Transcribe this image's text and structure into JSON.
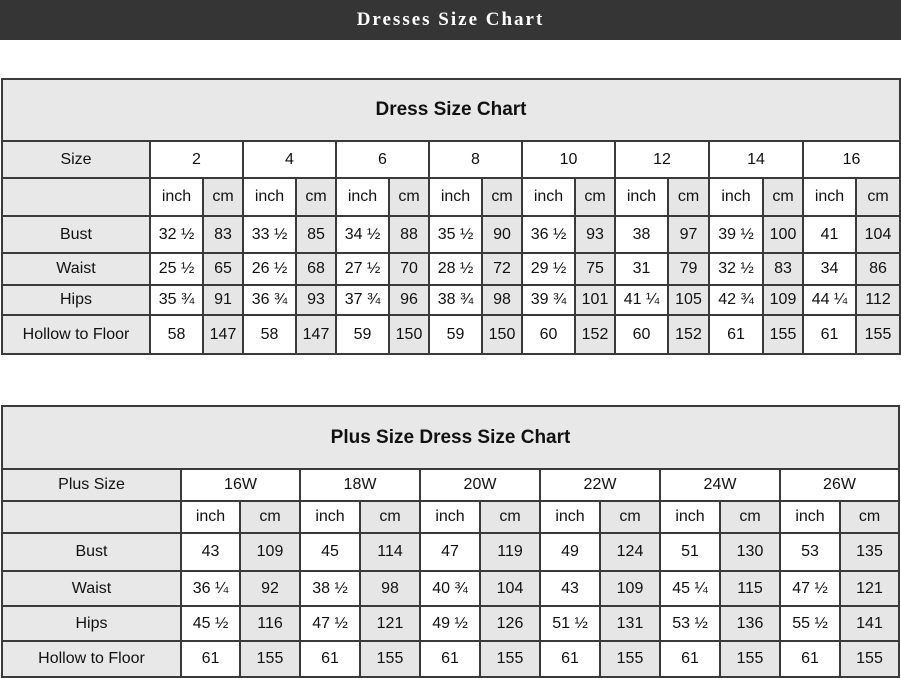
{
  "banner": {
    "title": "Dresses Size Chart"
  },
  "tables": [
    {
      "title": "Dress Size Chart",
      "size_label": "Size",
      "sizes": [
        "2",
        "4",
        "6",
        "8",
        "10",
        "12",
        "14",
        "16"
      ],
      "units": [
        "inch",
        "cm"
      ],
      "rows": [
        {
          "label": "Bust",
          "values": [
            "32 ½",
            "83",
            "33 ½",
            "85",
            "34 ½",
            "88",
            "35 ½",
            "90",
            "36 ½",
            "93",
            "38",
            "97",
            "39 ½",
            "100",
            "41",
            "104"
          ]
        },
        {
          "label": "Waist",
          "values": [
            "25 ½",
            "65",
            "26 ½",
            "68",
            "27 ½",
            "70",
            "28 ½",
            "72",
            "29 ½",
            "75",
            "31",
            "79",
            "32 ½",
            "83",
            "34",
            "86"
          ]
        },
        {
          "label": "Hips",
          "values": [
            "35 ¾",
            "91",
            "36 ¾",
            "93",
            "37 ¾",
            "96",
            "38 ¾",
            "98",
            "39 ¾",
            "101",
            "41 ¼",
            "105",
            "42 ¾",
            "109",
            "44 ¼",
            "112"
          ]
        },
        {
          "label": "Hollow to Floor",
          "values": [
            "58",
            "147",
            "58",
            "147",
            "59",
            "150",
            "59",
            "150",
            "60",
            "152",
            "60",
            "152",
            "61",
            "155",
            "61",
            "155"
          ]
        }
      ]
    },
    {
      "title": "Plus Size Dress Size Chart",
      "size_label": "Plus Size",
      "sizes": [
        "16W",
        "18W",
        "20W",
        "22W",
        "24W",
        "26W"
      ],
      "units": [
        "inch",
        "cm"
      ],
      "rows": [
        {
          "label": "Bust",
          "values": [
            "43",
            "109",
            "45",
            "114",
            "47",
            "119",
            "49",
            "124",
            "51",
            "130",
            "53",
            "135"
          ]
        },
        {
          "label": "Waist",
          "values": [
            "36 ¼",
            "92",
            "38 ½",
            "98",
            "40 ¾",
            "104",
            "43",
            "109",
            "45 ¼",
            "115",
            "47 ½",
            "121"
          ]
        },
        {
          "label": "Hips",
          "values": [
            "45 ½",
            "116",
            "47 ½",
            "121",
            "49 ½",
            "126",
            "51 ½",
            "131",
            "53 ½",
            "136",
            "55 ½",
            "141"
          ]
        },
        {
          "label": "Hollow to Floor",
          "values": [
            "61",
            "155",
            "61",
            "155",
            "61",
            "155",
            "61",
            "155",
            "61",
            "155",
            "61",
            "155"
          ]
        }
      ]
    }
  ]
}
